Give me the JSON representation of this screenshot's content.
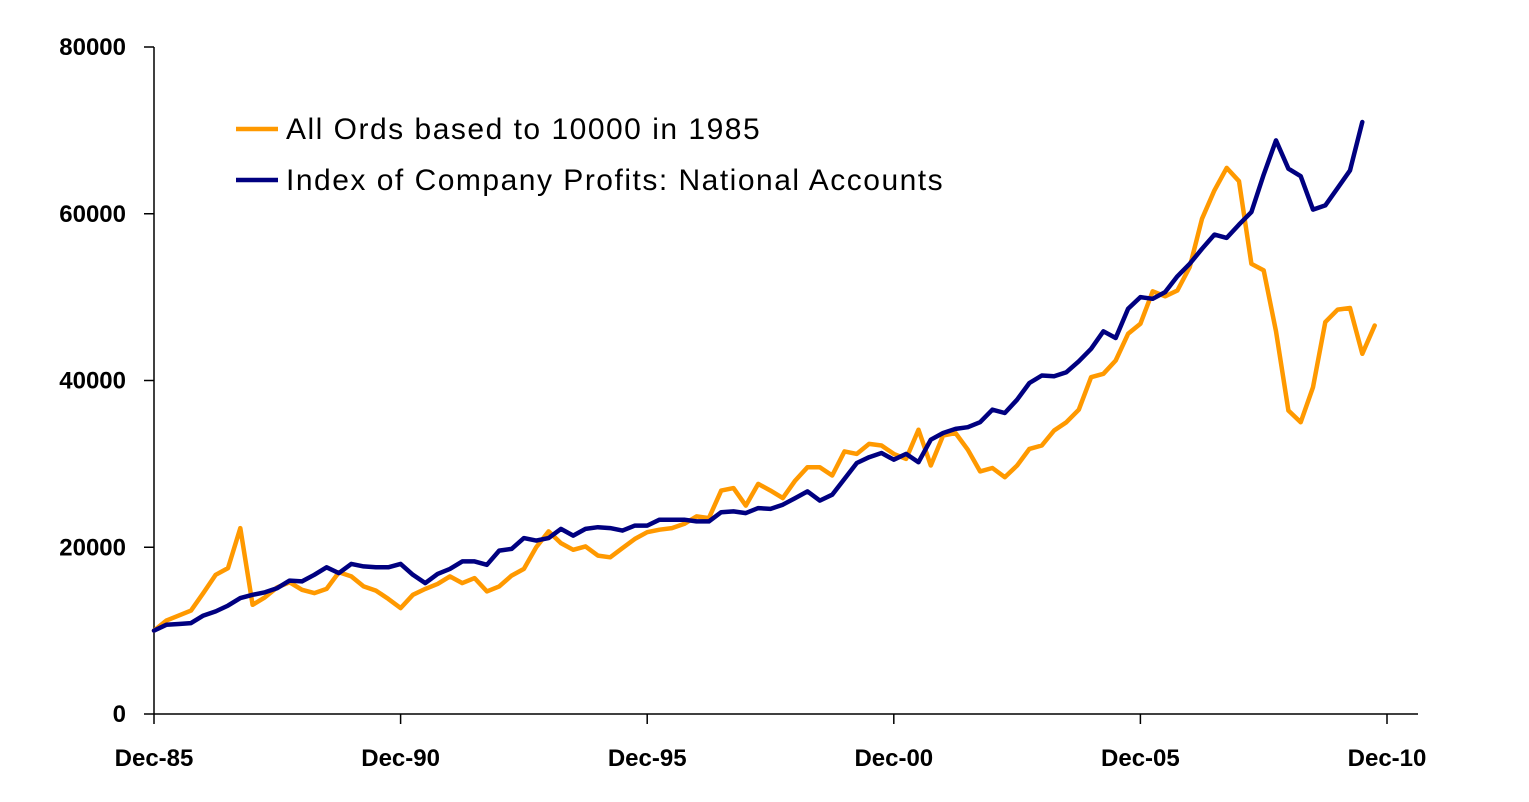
{
  "chart_data": {
    "type": "line",
    "title": "",
    "xlabel": "",
    "ylabel": "",
    "ylim": [
      0,
      80000
    ],
    "y_ticks": [
      "0",
      "20000",
      "40000",
      "60000",
      "80000"
    ],
    "x_range": [
      1985.92,
      2010.92
    ],
    "x_ticks": [
      {
        "label": "Dec-85",
        "x": 1985.92
      },
      {
        "label": "Dec-90",
        "x": 1990.92
      },
      {
        "label": "Dec-95",
        "x": 1995.92
      },
      {
        "label": "Dec-00",
        "x": 2000.92
      },
      {
        "label": "Dec-05",
        "x": 2005.92
      },
      {
        "label": "Dec-10",
        "x": 2010.92
      }
    ],
    "grid": false,
    "legend": "top-left",
    "series": [
      {
        "name": "All Ords based to 10000 in 1985",
        "color": "#FF9900",
        "x": [
          1985.92,
          1986.17,
          1986.42,
          1986.67,
          1986.92,
          1987.17,
          1987.42,
          1987.67,
          1987.92,
          1988.17,
          1988.42,
          1988.67,
          1988.92,
          1989.17,
          1989.42,
          1989.67,
          1989.92,
          1990.17,
          1990.42,
          1990.67,
          1990.92,
          1991.17,
          1991.42,
          1991.67,
          1991.92,
          1992.17,
          1992.42,
          1992.67,
          1992.92,
          1993.17,
          1993.42,
          1993.67,
          1993.92,
          1994.17,
          1994.42,
          1994.67,
          1994.92,
          1995.17,
          1995.42,
          1995.67,
          1995.92,
          1996.17,
          1996.42,
          1996.67,
          1996.92,
          1997.17,
          1997.42,
          1997.67,
          1997.92,
          1998.17,
          1998.42,
          1998.67,
          1998.92,
          1999.17,
          1999.42,
          1999.67,
          1999.92,
          2000.17,
          2000.42,
          2000.67,
          2000.92,
          2001.17,
          2001.42,
          2001.67,
          2001.92,
          2002.17,
          2002.42,
          2002.67,
          2002.92,
          2003.17,
          2003.42,
          2003.67,
          2003.92,
          2004.17,
          2004.42,
          2004.67,
          2004.92,
          2005.17,
          2005.42,
          2005.67,
          2005.92,
          2006.17,
          2006.42,
          2006.67,
          2006.92,
          2007.17,
          2007.42,
          2007.67,
          2007.92,
          2008.17,
          2008.42,
          2008.67,
          2008.92,
          2009.17,
          2009.42,
          2009.67,
          2009.92,
          2010.17,
          2010.42,
          2010.67
        ],
        "y": [
          10000,
          11200,
          11800,
          12400,
          14500,
          16700,
          17500,
          22300,
          13100,
          14000,
          15200,
          15800,
          14900,
          14500,
          15000,
          17000,
          16500,
          15300,
          14800,
          13800,
          12700,
          14300,
          15000,
          15600,
          16500,
          15700,
          16300,
          14700,
          15300,
          16600,
          17400,
          20000,
          21900,
          20500,
          19700,
          20100,
          19000,
          18800,
          19900,
          21000,
          21800,
          22100,
          22300,
          22800,
          23700,
          23500,
          26800,
          27100,
          25000,
          27600,
          26800,
          25900,
          28000,
          29600,
          29600,
          28600,
          31500,
          31200,
          32400,
          32200,
          31200,
          30600,
          34100,
          29800,
          33400,
          33700,
          31700,
          29100,
          29500,
          28400,
          29800,
          31800,
          32200,
          34000,
          35000,
          36500,
          40400,
          40800,
          42400,
          45600,
          46800,
          50700,
          50100,
          50800,
          53600,
          59400,
          62800,
          65500,
          63900,
          54000,
          53200,
          45900,
          36400,
          35000,
          39200,
          47000,
          48500,
          48700,
          43200,
          46600
        ]
      },
      {
        "name": "Index of Company Profits: National Accounts",
        "color": "#000080",
        "x": [
          1985.92,
          1986.17,
          1986.42,
          1986.67,
          1986.92,
          1987.17,
          1987.42,
          1987.67,
          1987.92,
          1988.17,
          1988.42,
          1988.67,
          1988.92,
          1989.17,
          1989.42,
          1989.67,
          1989.92,
          1990.17,
          1990.42,
          1990.67,
          1990.92,
          1991.17,
          1991.42,
          1991.67,
          1991.92,
          1992.17,
          1992.42,
          1992.67,
          1992.92,
          1993.17,
          1993.42,
          1993.67,
          1993.92,
          1994.17,
          1994.42,
          1994.67,
          1994.92,
          1995.17,
          1995.42,
          1995.67,
          1995.92,
          1996.17,
          1996.42,
          1996.67,
          1996.92,
          1997.17,
          1997.42,
          1997.67,
          1997.92,
          1998.17,
          1998.42,
          1998.67,
          1998.92,
          1999.17,
          1999.42,
          1999.67,
          1999.92,
          2000.17,
          2000.42,
          2000.67,
          2000.92,
          2001.17,
          2001.42,
          2001.67,
          2001.92,
          2002.17,
          2002.42,
          2002.67,
          2002.92,
          2003.17,
          2003.42,
          2003.67,
          2003.92,
          2004.17,
          2004.42,
          2004.67,
          2004.92,
          2005.17,
          2005.42,
          2005.67,
          2005.92,
          2006.17,
          2006.42,
          2006.67,
          2006.92,
          2007.17,
          2007.42,
          2007.67,
          2007.92,
          2008.17,
          2008.42,
          2008.67,
          2008.92,
          2009.17,
          2009.42,
          2009.67,
          2009.92,
          2010.17,
          2010.42
        ],
        "y": [
          10000,
          10700,
          10800,
          10900,
          11800,
          12300,
          13000,
          13900,
          14300,
          14600,
          15100,
          16000,
          15900,
          16700,
          17600,
          16900,
          18000,
          17700,
          17600,
          17600,
          18000,
          16700,
          15700,
          16800,
          17400,
          18300,
          18300,
          17900,
          19600,
          19800,
          21100,
          20800,
          21100,
          22200,
          21400,
          22200,
          22400,
          22300,
          22000,
          22600,
          22600,
          23300,
          23300,
          23300,
          23100,
          23100,
          24200,
          24300,
          24100,
          24700,
          24600,
          25100,
          25900,
          26700,
          25600,
          26300,
          28200,
          30100,
          30800,
          31300,
          30500,
          31200,
          30200,
          32900,
          33700,
          34200,
          34400,
          35000,
          36500,
          36100,
          37700,
          39700,
          40600,
          40500,
          41000,
          42300,
          43800,
          45900,
          45100,
          48600,
          50000,
          49800,
          50600,
          52500,
          54000,
          55800,
          57500,
          57100,
          58700,
          60200,
          64700,
          68800,
          65400,
          64500,
          60500,
          61000,
          63100,
          65200,
          71000
        ]
      }
    ]
  }
}
